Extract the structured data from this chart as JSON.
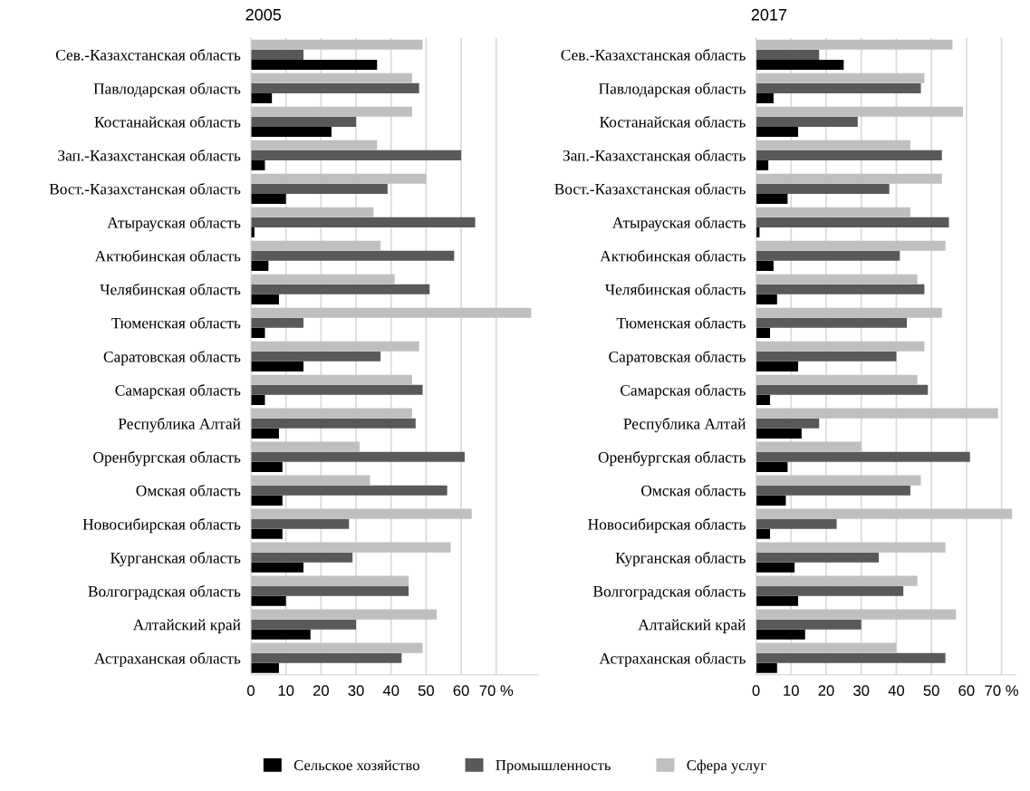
{
  "chart_data": [
    {
      "type": "bar",
      "orientation": "horizontal",
      "title": "2005",
      "categories": [
        "Сев.-Казахстанская область",
        "Павлодарская область",
        "Костанайская область",
        "Зап.-Казахстанская область",
        "Вост.-Казахстанская область",
        "Атырауская область",
        "Актюбинская область",
        "Челябинская область",
        "Тюменская область",
        "Саратовская область",
        "Самарская область",
        "Республика Алтай",
        "Оренбургская область",
        "Омская область",
        "Новосибирская область",
        "Курганская область",
        "Волгоградская область",
        "Алтайский край",
        "Астраханская область"
      ],
      "series": [
        {
          "name": "Сельское хозяйство",
          "color": "#000000",
          "values": [
            36,
            6,
            23,
            4,
            10,
            1,
            5,
            8,
            4,
            15,
            4,
            8,
            9,
            9,
            9,
            15,
            10,
            17,
            8
          ]
        },
        {
          "name": "Промышленность",
          "color": "#595959",
          "values": [
            15,
            48,
            30,
            60,
            39,
            64,
            58,
            51,
            15,
            37,
            49,
            47,
            61,
            56,
            28,
            29,
            45,
            30,
            43
          ]
        },
        {
          "name": "Сфера услуг",
          "color": "#bfbfbf",
          "values": [
            49,
            46,
            46,
            36,
            50,
            35,
            37,
            41,
            80,
            48,
            46,
            46,
            31,
            34,
            63,
            57,
            45,
            53,
            49
          ]
        }
      ],
      "xlim": [
        0,
        82
      ],
      "xticks": [
        0,
        10,
        20,
        30,
        40,
        50,
        60,
        {
          "value": 70,
          "label": "70 %"
        }
      ],
      "grid": "x",
      "legend": "bottom"
    },
    {
      "type": "bar",
      "orientation": "horizontal",
      "title": "2017",
      "categories": [
        "Сев.-Казахстанская область",
        "Павлодарская область",
        "Костанайская область",
        "Зап.-Казахстанская область",
        "Вост.-Казахстанская область",
        "Атырауская область",
        "Актюбинская область",
        "Челябинская область",
        "Тюменская область",
        "Саратовская область",
        "Самарская область",
        "Республика Алтай",
        "Оренбургская область",
        "Омская область",
        "Новосибирская область",
        "Курганская область",
        "Волгоградская область",
        "Алтайский край",
        "Астраханская область"
      ],
      "series": [
        {
          "color": "#000000",
          "values": [
            25,
            5,
            12,
            3.5,
            9,
            1,
            5,
            6,
            4,
            12,
            4,
            13,
            9,
            8.5,
            4,
            11,
            12,
            14,
            6
          ]
        },
        {
          "color": "#595959",
          "values": [
            18,
            47,
            29,
            53,
            38,
            55,
            41,
            48,
            43,
            40,
            49,
            18,
            61,
            44,
            23,
            35,
            42,
            30,
            54
          ]
        },
        {
          "color": "#bfbfbf",
          "values": [
            56,
            48,
            59,
            44,
            53,
            44,
            54,
            46,
            53,
            48,
            46,
            69,
            30,
            47,
            73,
            54,
            46,
            57,
            40
          ]
        }
      ],
      "xlim": [
        0,
        74
      ],
      "xticks": [
        0,
        10,
        20,
        30,
        40,
        50,
        60,
        {
          "value": 70,
          "label": "70 %"
        }
      ],
      "grid": "x"
    }
  ]
}
